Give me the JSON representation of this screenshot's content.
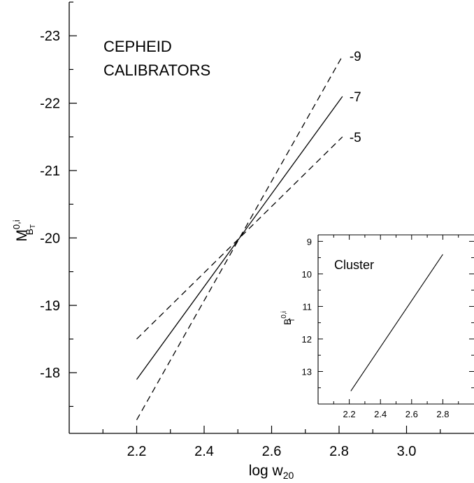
{
  "chart_data": [
    {
      "type": "line",
      "annotation": [
        "CEPHEID",
        "CALIBRATORS"
      ],
      "xlabel": "log w",
      "xlabel_sub": "20",
      "ylabel": "M",
      "ylabel_sup": "0,i",
      "ylabel_sub": "B",
      "ylabel_subsub": "T",
      "xlim": [
        2.0,
        3.2
      ],
      "ylim": [
        -17.1,
        -23.5
      ],
      "xticks": [
        2.2,
        2.4,
        2.6,
        2.8,
        3.0
      ],
      "xtick_labels": [
        "2.2",
        "2.4",
        "2.6",
        "2.8",
        "3.0"
      ],
      "yticks": [
        -23,
        -22,
        -21,
        -20,
        -19,
        -18
      ],
      "ytick_labels": [
        "-23",
        "-22",
        "-21",
        "-20",
        "-19",
        "-18"
      ],
      "grid": false,
      "series": [
        {
          "name": "-9",
          "style": "dashed",
          "x": [
            2.2,
            2.81
          ],
          "y": [
            -17.3,
            -22.7
          ]
        },
        {
          "name": "-7",
          "style": "solid",
          "x": [
            2.2,
            2.81
          ],
          "y": [
            -17.9,
            -22.1
          ]
        },
        {
          "name": "-5",
          "style": "dashed",
          "x": [
            2.2,
            2.81
          ],
          "y": [
            -18.5,
            -21.5
          ]
        }
      ]
    },
    {
      "type": "line",
      "inset": true,
      "annotation": [
        "Cluster"
      ],
      "xlabel": "",
      "ylabel": "B",
      "ylabel_sup": "0,i",
      "ylabel_sub": "T",
      "xlim": [
        2.0,
        3.0
      ],
      "ylim": [
        14.0,
        8.8
      ],
      "xticks": [
        2.2,
        2.4,
        2.6,
        2.8
      ],
      "xtick_labels": [
        "2.2",
        "2.4",
        "2.6",
        "2.8"
      ],
      "yticks": [
        9,
        10,
        11,
        12,
        13
      ],
      "ytick_labels": [
        "9",
        "10",
        "11",
        "12",
        "13"
      ],
      "grid": false,
      "series": [
        {
          "style": "solid",
          "x": [
            2.21,
            2.8
          ],
          "y": [
            13.6,
            9.4
          ]
        }
      ]
    }
  ]
}
